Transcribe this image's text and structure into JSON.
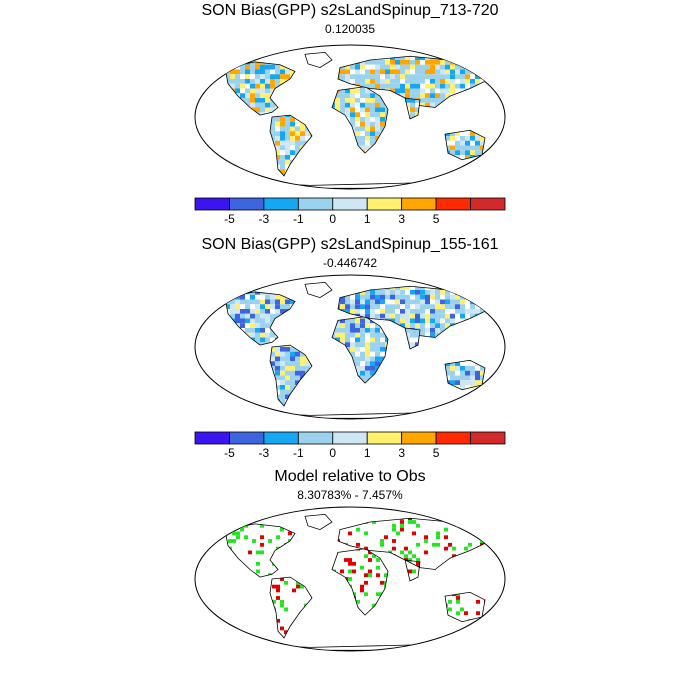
{
  "panels": [
    {
      "title": "SON Bias(GPP) s2sLandSpinup_713-720",
      "subtitle": "0.120035"
    },
    {
      "title": "SON Bias(GPP) s2sLandSpinup_155-161",
      "subtitle": "-0.446742"
    },
    {
      "title": "Model relative to Obs",
      "subtitle": "8.30783% - 7.457%"
    }
  ],
  "colorbar": {
    "colors": [
      "#3b14f0",
      "#3f64e0",
      "#16a7f3",
      "#9bd2ee",
      "#cfe7f4",
      "#fff06e",
      "#ffa600",
      "#ff2a00",
      "#d22a2a"
    ],
    "labels": [
      "-5",
      "-3",
      "-1",
      "0",
      "1",
      "3",
      "5"
    ]
  },
  "relative_colors": {
    "better": "#22e622",
    "worse": "#e00000"
  }
}
